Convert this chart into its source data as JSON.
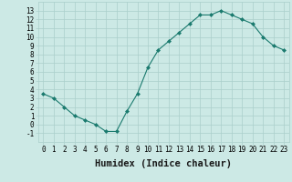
{
  "xlabel": "Humidex (Indice chaleur)",
  "x": [
    0,
    1,
    2,
    3,
    4,
    5,
    6,
    7,
    8,
    9,
    10,
    11,
    12,
    13,
    14,
    15,
    16,
    17,
    18,
    19,
    20,
    21,
    22,
    23
  ],
  "y": [
    3.5,
    3.0,
    2.0,
    1.0,
    0.5,
    0.0,
    -0.8,
    -0.8,
    1.5,
    3.5,
    6.5,
    8.5,
    9.5,
    10.5,
    11.5,
    12.5,
    12.5,
    13.0,
    12.5,
    12.0,
    11.5,
    10.0,
    9.0,
    8.5
  ],
  "line_color": "#1a7a6e",
  "marker": "D",
  "marker_size": 2.0,
  "background_color": "#cce9e5",
  "grid_color": "#aacfcb",
  "xlim": [
    -0.5,
    23.5
  ],
  "ylim": [
    -2,
    14
  ],
  "yticks": [
    -1,
    0,
    1,
    2,
    3,
    4,
    5,
    6,
    7,
    8,
    9,
    10,
    11,
    12,
    13
  ],
  "xticks": [
    0,
    1,
    2,
    3,
    4,
    5,
    6,
    7,
    8,
    9,
    10,
    11,
    12,
    13,
    14,
    15,
    16,
    17,
    18,
    19,
    20,
    21,
    22,
    23
  ],
  "tick_fontsize": 5.5,
  "xlabel_fontsize": 7.5,
  "linewidth": 0.8
}
